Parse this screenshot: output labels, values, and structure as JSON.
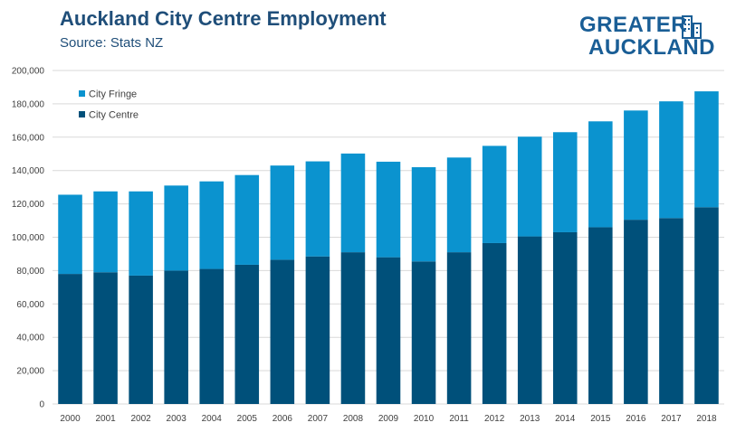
{
  "header": {
    "title": "Auckland City Centre Employment",
    "subtitle": "Source: Stats NZ"
  },
  "logo": {
    "line1": "GREATER",
    "line2": "AUCKLAND",
    "icon": "city-buildings-icon",
    "color": "#1a5e96"
  },
  "chart_data": {
    "type": "bar",
    "stacked": true,
    "categories": [
      "2000",
      "2001",
      "2002",
      "2003",
      "2004",
      "2005",
      "2006",
      "2007",
      "2008",
      "2009",
      "2010",
      "2011",
      "2012",
      "2013",
      "2014",
      "2015",
      "2016",
      "2017",
      "2018"
    ],
    "series": [
      {
        "name": "City Centre",
        "color": "#00507a",
        "values": [
          78000,
          79000,
          77000,
          80000,
          81000,
          83500,
          86500,
          88500,
          91000,
          88000,
          85500,
          91000,
          96500,
          100500,
          103000,
          106000,
          110500,
          111500,
          118000
        ]
      },
      {
        "name": "City Fringe",
        "color": "#0b93cf",
        "values": [
          47500,
          48500,
          50500,
          51000,
          52500,
          53800,
          56500,
          57000,
          59200,
          57300,
          56500,
          56800,
          58300,
          59800,
          60000,
          63500,
          65500,
          70000,
          69500
        ]
      }
    ],
    "ylim": [
      0,
      200000
    ],
    "yticks": [
      0,
      20000,
      40000,
      60000,
      80000,
      100000,
      120000,
      140000,
      160000,
      180000,
      200000
    ],
    "ytick_labels": [
      "0",
      "20,000",
      "40,000",
      "60,000",
      "80,000",
      "100,000",
      "120,000",
      "140,000",
      "160,000",
      "180,000",
      "200,000"
    ],
    "grid": true,
    "legend_position": "top-left",
    "legend": [
      {
        "name": "City Fringe",
        "color": "#0b93cf"
      },
      {
        "name": "City Centre",
        "color": "#00507a"
      }
    ]
  }
}
